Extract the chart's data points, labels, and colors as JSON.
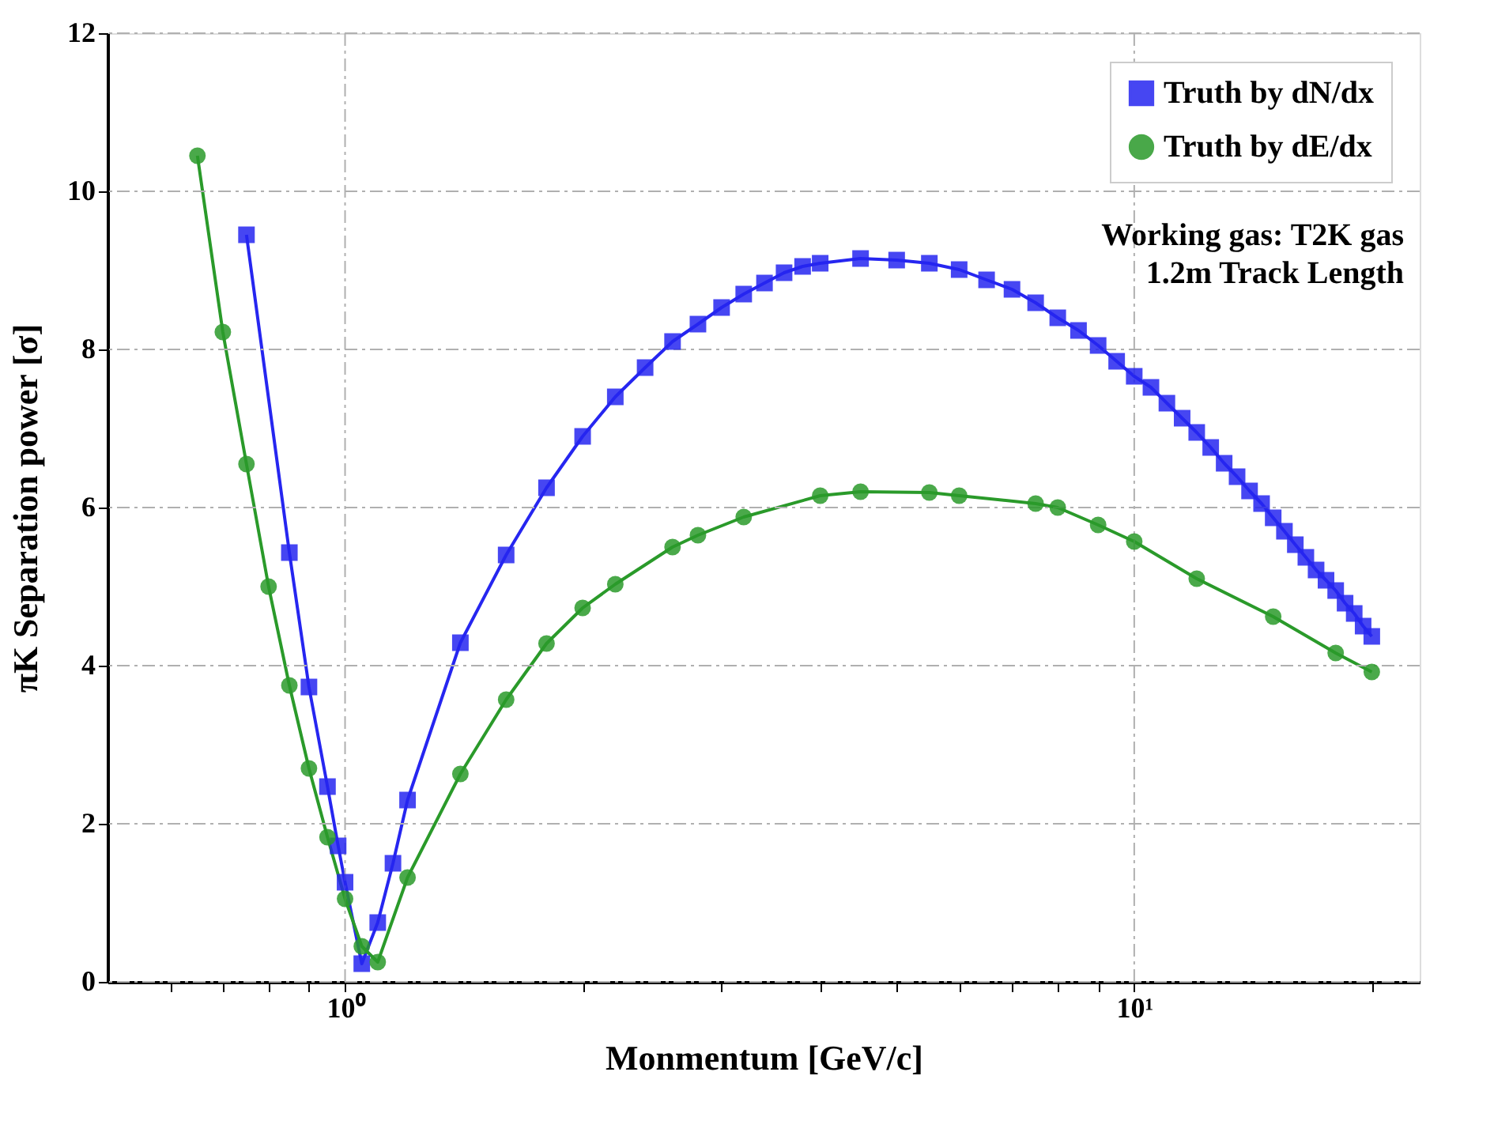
{
  "chart_data": {
    "type": "line",
    "xlabel": "Monmentum [GeV/c]",
    "ylabel": "πK Separation power [σ]",
    "log": "x",
    "xlim": [
      0.5,
      23
    ],
    "xticks": [
      {
        "value": 0.6,
        "label": null
      },
      {
        "value": 0.7,
        "label": null
      },
      {
        "value": 0.8,
        "label": null
      },
      {
        "value": 0.9,
        "label": null
      },
      {
        "value": 1,
        "label": "10⁰"
      },
      {
        "value": 2,
        "label": null
      },
      {
        "value": 3,
        "label": null
      },
      {
        "value": 4,
        "label": null
      },
      {
        "value": 5,
        "label": null
      },
      {
        "value": 6,
        "label": null
      },
      {
        "value": 7,
        "label": null
      },
      {
        "value": 8,
        "label": null
      },
      {
        "value": 9,
        "label": null
      },
      {
        "value": 10,
        "label": "10¹"
      },
      {
        "value": 20,
        "label": null
      }
    ],
    "ylim": [
      0,
      12
    ],
    "yticks": [
      0,
      2,
      4,
      6,
      8,
      10,
      12
    ],
    "grid": true,
    "legend": "top right",
    "line_style": "solid",
    "annotations": [
      "Working gas: T2K gas",
      "1.2m Track Length"
    ],
    "series": [
      {
        "name": "Truth by dN/dx",
        "color": "#2626f0",
        "marker": "square",
        "x": [
          0.75,
          0.85,
          0.9,
          0.95,
          0.98,
          1.0,
          1.05,
          1.1,
          1.15,
          1.2,
          1.4,
          1.6,
          1.8,
          2.0,
          2.2,
          2.4,
          2.6,
          2.8,
          3.0,
          3.2,
          3.4,
          3.6,
          3.8,
          4.0,
          4.5,
          5.0,
          5.5,
          6.0,
          6.5,
          7.0,
          7.5,
          8.0,
          8.5,
          9.0,
          9.5,
          10.0,
          10.5,
          11.0,
          11.5,
          12.0,
          12.5,
          13.0,
          13.5,
          14.0,
          14.5,
          15.0,
          15.5,
          16.0,
          16.5,
          17.0,
          17.5,
          18.0,
          18.5,
          19.0,
          19.5,
          20.0
        ],
        "values": [
          9.45,
          5.43,
          3.73,
          2.47,
          1.72,
          1.26,
          0.23,
          0.75,
          1.5,
          2.3,
          4.29,
          5.4,
          6.25,
          6.9,
          7.4,
          7.77,
          8.1,
          8.32,
          8.53,
          8.7,
          8.84,
          8.97,
          9.05,
          9.09,
          9.15,
          9.13,
          9.09,
          9.01,
          8.88,
          8.76,
          8.59,
          8.4,
          8.24,
          8.05,
          7.85,
          7.66,
          7.52,
          7.32,
          7.13,
          6.95,
          6.76,
          6.56,
          6.39,
          6.21,
          6.05,
          5.87,
          5.7,
          5.53,
          5.37,
          5.21,
          5.08,
          4.95,
          4.79,
          4.66,
          4.5,
          4.37
        ]
      },
      {
        "name": "Truth by dE/dx",
        "color": "#2a9a2a",
        "marker": "circle",
        "x": [
          0.65,
          0.7,
          0.75,
          0.8,
          0.85,
          0.9,
          0.95,
          1.0,
          1.05,
          1.1,
          1.2,
          1.4,
          1.6,
          1.8,
          2.0,
          2.2,
          2.6,
          2.8,
          3.2,
          4.0,
          4.5,
          5.5,
          6.0,
          7.5,
          8.0,
          9.0,
          10.0,
          12.0,
          15.0,
          18.0,
          20.0
        ],
        "values": [
          10.45,
          8.22,
          6.55,
          5.0,
          3.75,
          2.7,
          1.83,
          1.05,
          0.45,
          0.25,
          1.32,
          2.63,
          3.57,
          4.28,
          4.73,
          5.03,
          5.5,
          5.65,
          5.88,
          6.15,
          6.2,
          6.19,
          6.15,
          6.05,
          6.0,
          5.78,
          5.57,
          5.1,
          4.62,
          4.16,
          3.92
        ]
      }
    ]
  }
}
